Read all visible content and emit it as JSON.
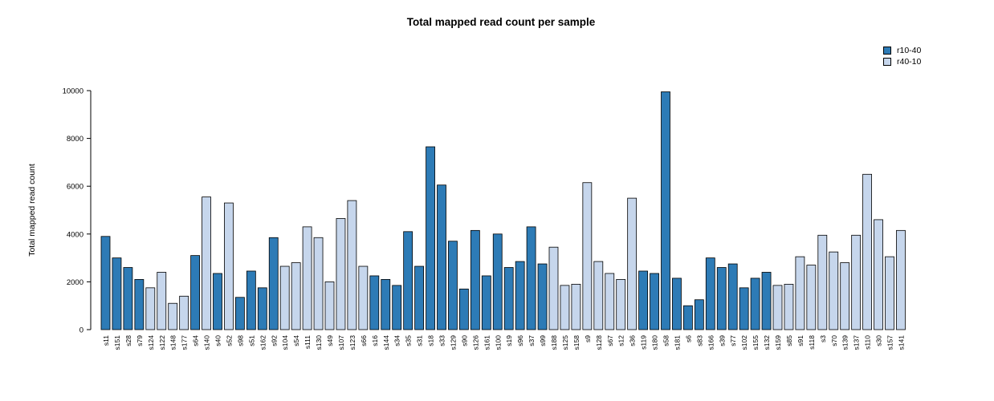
{
  "chart_data": {
    "type": "bar",
    "title": "Total mapped read count per sample",
    "xlabel": "",
    "ylabel": "Total mapped read count",
    "ylim": [
      0,
      10000
    ],
    "yticks": [
      0,
      2000,
      4000,
      6000,
      8000,
      10000
    ],
    "grid": false,
    "legend_position": "top-right",
    "legend": [
      {
        "name": "r10-40",
        "color": "#2d7bb6"
      },
      {
        "name": "r40-10",
        "color": "#c6d6ec"
      }
    ],
    "bars": [
      {
        "label": "s11",
        "value": 3900,
        "group": "r10-40"
      },
      {
        "label": "s151",
        "value": 3000,
        "group": "r10-40"
      },
      {
        "label": "s28",
        "value": 2600,
        "group": "r10-40"
      },
      {
        "label": "s79",
        "value": 2100,
        "group": "r10-40"
      },
      {
        "label": "s124",
        "value": 1750,
        "group": "r40-10"
      },
      {
        "label": "s122",
        "value": 2400,
        "group": "r40-10"
      },
      {
        "label": "s148",
        "value": 1100,
        "group": "r40-10"
      },
      {
        "label": "s177",
        "value": 1400,
        "group": "r40-10"
      },
      {
        "label": "s64",
        "value": 3100,
        "group": "r10-40"
      },
      {
        "label": "s140",
        "value": 5550,
        "group": "r40-10"
      },
      {
        "label": "s40",
        "value": 2350,
        "group": "r10-40"
      },
      {
        "label": "s52",
        "value": 5300,
        "group": "r40-10"
      },
      {
        "label": "s98",
        "value": 1350,
        "group": "r10-40"
      },
      {
        "label": "s51",
        "value": 2450,
        "group": "r10-40"
      },
      {
        "label": "s162",
        "value": 1750,
        "group": "r10-40"
      },
      {
        "label": "s92",
        "value": 3850,
        "group": "r10-40"
      },
      {
        "label": "s104",
        "value": 2650,
        "group": "r40-10"
      },
      {
        "label": "s54",
        "value": 2800,
        "group": "r40-10"
      },
      {
        "label": "s111",
        "value": 4300,
        "group": "r40-10"
      },
      {
        "label": "s130",
        "value": 3850,
        "group": "r40-10"
      },
      {
        "label": "s49",
        "value": 2000,
        "group": "r40-10"
      },
      {
        "label": "s107",
        "value": 4650,
        "group": "r40-10"
      },
      {
        "label": "s123",
        "value": 5400,
        "group": "r40-10"
      },
      {
        "label": "s66",
        "value": 2650,
        "group": "r40-10"
      },
      {
        "label": "s16",
        "value": 2250,
        "group": "r10-40"
      },
      {
        "label": "s144",
        "value": 2100,
        "group": "r10-40"
      },
      {
        "label": "s34",
        "value": 1850,
        "group": "r10-40"
      },
      {
        "label": "s35",
        "value": 4100,
        "group": "r10-40"
      },
      {
        "label": "s31",
        "value": 2650,
        "group": "r10-40"
      },
      {
        "label": "s18",
        "value": 7650,
        "group": "r10-40"
      },
      {
        "label": "s33",
        "value": 6050,
        "group": "r10-40"
      },
      {
        "label": "s129",
        "value": 3700,
        "group": "r10-40"
      },
      {
        "label": "s90",
        "value": 1700,
        "group": "r10-40"
      },
      {
        "label": "s126",
        "value": 4150,
        "group": "r10-40"
      },
      {
        "label": "s161",
        "value": 2250,
        "group": "r10-40"
      },
      {
        "label": "s100",
        "value": 4000,
        "group": "r10-40"
      },
      {
        "label": "s19",
        "value": 2600,
        "group": "r10-40"
      },
      {
        "label": "s96",
        "value": 2850,
        "group": "r10-40"
      },
      {
        "label": "s37",
        "value": 4300,
        "group": "r10-40"
      },
      {
        "label": "s99",
        "value": 2750,
        "group": "r10-40"
      },
      {
        "label": "s188",
        "value": 3450,
        "group": "r40-10"
      },
      {
        "label": "s125",
        "value": 1850,
        "group": "r40-10"
      },
      {
        "label": "s158",
        "value": 1900,
        "group": "r40-10"
      },
      {
        "label": "s9",
        "value": 6150,
        "group": "r40-10"
      },
      {
        "label": "s128",
        "value": 2850,
        "group": "r40-10"
      },
      {
        "label": "s67",
        "value": 2350,
        "group": "r40-10"
      },
      {
        "label": "s12",
        "value": 2100,
        "group": "r40-10"
      },
      {
        "label": "s36",
        "value": 5500,
        "group": "r40-10"
      },
      {
        "label": "s119",
        "value": 2450,
        "group": "r10-40"
      },
      {
        "label": "s180",
        "value": 2350,
        "group": "r10-40"
      },
      {
        "label": "s58",
        "value": 9950,
        "group": "r10-40"
      },
      {
        "label": "s181",
        "value": 2150,
        "group": "r10-40"
      },
      {
        "label": "s6",
        "value": 1000,
        "group": "r10-40"
      },
      {
        "label": "s83",
        "value": 1250,
        "group": "r10-40"
      },
      {
        "label": "s166",
        "value": 3000,
        "group": "r10-40"
      },
      {
        "label": "s39",
        "value": 2600,
        "group": "r10-40"
      },
      {
        "label": "s77",
        "value": 2750,
        "group": "r10-40"
      },
      {
        "label": "s102",
        "value": 1750,
        "group": "r10-40"
      },
      {
        "label": "s155",
        "value": 2150,
        "group": "r10-40"
      },
      {
        "label": "s132",
        "value": 2400,
        "group": "r10-40"
      },
      {
        "label": "s159",
        "value": 1850,
        "group": "r40-10"
      },
      {
        "label": "s85",
        "value": 1900,
        "group": "r40-10"
      },
      {
        "label": "s91",
        "value": 3050,
        "group": "r40-10"
      },
      {
        "label": "s118",
        "value": 2700,
        "group": "r40-10"
      },
      {
        "label": "s3",
        "value": 3950,
        "group": "r40-10"
      },
      {
        "label": "s70",
        "value": 3250,
        "group": "r40-10"
      },
      {
        "label": "s139",
        "value": 2800,
        "group": "r40-10"
      },
      {
        "label": "s137",
        "value": 3950,
        "group": "r40-10"
      },
      {
        "label": "s110",
        "value": 6500,
        "group": "r40-10"
      },
      {
        "label": "s30",
        "value": 4600,
        "group": "r40-10"
      },
      {
        "label": "s157",
        "value": 3050,
        "group": "r40-10"
      },
      {
        "label": "s141",
        "value": 4150,
        "group": "r40-10"
      }
    ]
  }
}
